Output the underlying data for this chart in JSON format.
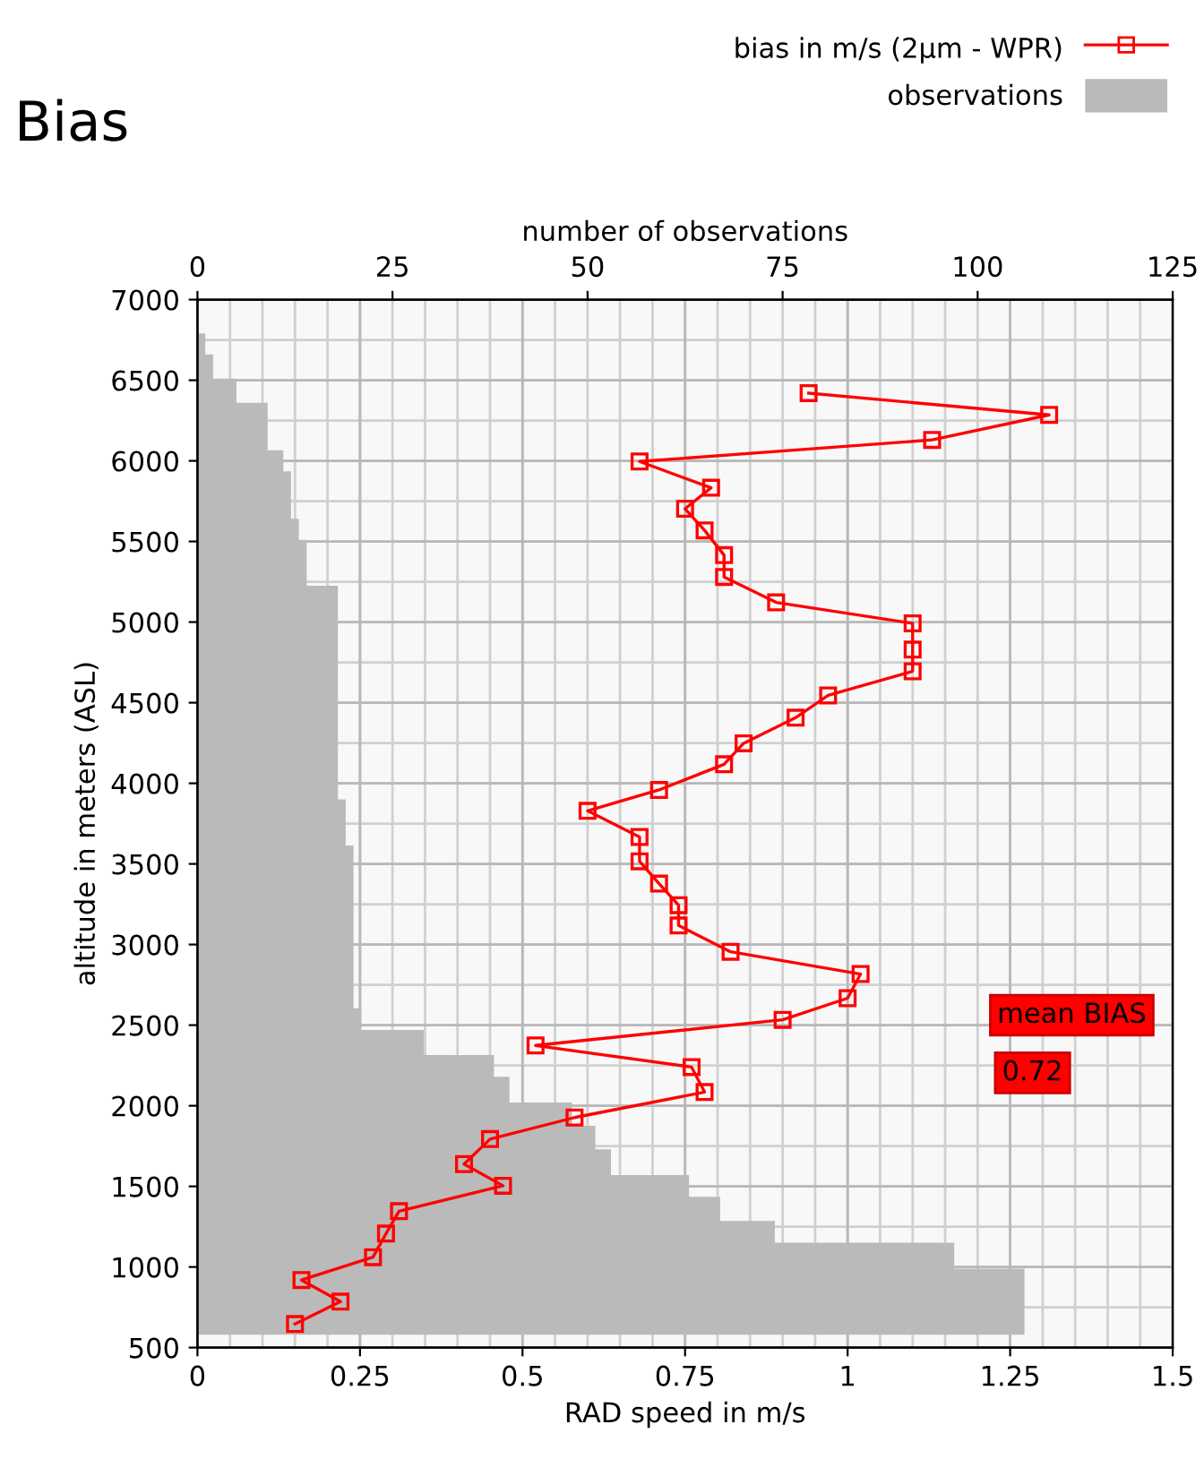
{
  "chart_data": {
    "type": "line",
    "title": "Bias",
    "orientation": "horizontal",
    "xlabel": "RAD speed in m/s",
    "ylabel": "altitude in meters (ASL)",
    "x2label": "number of observations",
    "xlim": [
      0,
      1.5
    ],
    "xticks": [
      0,
      0.25,
      0.5,
      0.75,
      1,
      1.25,
      1.5
    ],
    "x2lim": [
      0,
      125
    ],
    "x2ticks": [
      0,
      25,
      50,
      75,
      100,
      125
    ],
    "ylim": [
      500,
      7000
    ],
    "yticks": [
      500,
      1000,
      1500,
      2000,
      2500,
      3000,
      3500,
      4000,
      4500,
      5000,
      5500,
      6000,
      6500,
      7000
    ],
    "grid": true,
    "legend": "top right",
    "annotations": [
      "mean BIAS",
      "0.72"
    ],
    "series": [
      {
        "name": "bias in m/s (2µm - WPR)",
        "color": "#ff0000",
        "marker": "square",
        "x": [
          6420,
          6285,
          6130,
          5996,
          5833,
          5703,
          5569,
          5415,
          5280,
          5122,
          4992,
          4829,
          4695,
          4545,
          4407,
          4248,
          4118,
          3959,
          3829,
          3667,
          3516,
          3378,
          3244,
          3118,
          2955,
          2817,
          2667,
          2533,
          2374,
          2240,
          2085,
          1927,
          1793,
          1638,
          1504,
          1346,
          1207,
          1061,
          919,
          785,
          646
        ],
        "values": [
          0.94,
          1.31,
          1.13,
          0.68,
          0.79,
          0.75,
          0.78,
          0.81,
          0.81,
          0.89,
          1.1,
          1.1,
          1.1,
          0.97,
          0.92,
          0.84,
          0.81,
          0.71,
          0.6,
          0.68,
          0.68,
          0.71,
          0.74,
          0.74,
          0.82,
          1.02,
          1.0,
          0.9,
          0.52,
          0.76,
          0.78,
          0.58,
          0.45,
          0.41,
          0.47,
          0.31,
          0.29,
          0.27,
          0.16,
          0.22,
          0.15
        ]
      },
      {
        "name": "observations",
        "type": "histogram",
        "axis": "x2",
        "color": "#bababa",
        "bins": [
          580,
          990,
          1150,
          1285,
          1435,
          1570,
          1730,
          1875,
          2020,
          2180,
          2315,
          2470,
          2605,
          3615,
          3900,
          5225,
          5510,
          5640,
          5935,
          6065,
          6360,
          6510,
          6660,
          6790
        ],
        "values": [
          106,
          97,
          74,
          67,
          63,
          53,
          51,
          48,
          40,
          38,
          29,
          21,
          20,
          19,
          18,
          14,
          13,
          12,
          11,
          9,
          5,
          2,
          1
        ]
      }
    ]
  }
}
